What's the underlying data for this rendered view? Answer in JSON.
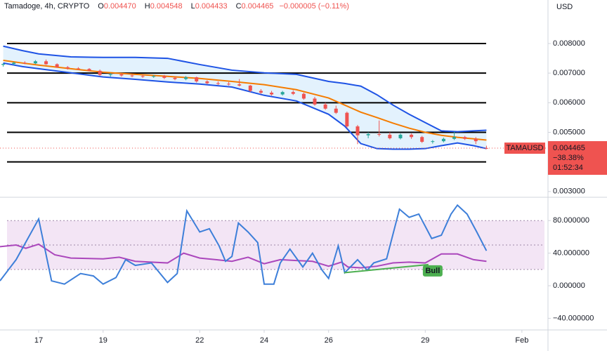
{
  "chart_data": [
    {
      "type": "candlestick",
      "header": {
        "symbol": "Tamadoge, 4h, CRYPTO",
        "ohlc": [
          {
            "label": "O",
            "value": "0.004470"
          },
          {
            "label": "H",
            "value": "0.004548"
          },
          {
            "label": "L",
            "value": "0.004433"
          },
          {
            "label": "C",
            "value": "0.004465"
          }
        ],
        "change": "−0.000005 (−0.11%)"
      },
      "currency": "USD",
      "x": [
        15.9,
        16.23,
        16.57,
        16.9,
        17.23,
        17.57,
        17.9,
        18.23,
        18.57,
        18.9,
        19.23,
        19.57,
        19.9,
        20.23,
        20.57,
        20.9,
        21.23,
        21.57,
        21.9,
        22.23,
        22.57,
        22.9,
        23.23,
        23.57,
        23.9,
        24.23,
        24.57,
        24.9,
        25.23,
        25.57,
        25.9,
        26.23,
        26.57,
        26.9,
        27.23,
        27.57,
        27.9,
        28.23,
        28.57,
        28.9,
        29.23,
        29.57,
        29.9,
        30.23,
        30.57,
        30.9
      ],
      "open": [
        0.00728,
        0.00731,
        0.00735,
        0.00733,
        0.0074,
        0.0073,
        0.0072,
        0.00716,
        0.00714,
        0.00708,
        0.00694,
        0.00696,
        0.00692,
        0.0069,
        0.00688,
        0.0069,
        0.00684,
        0.0068,
        0.00686,
        0.00672,
        0.00666,
        0.00664,
        0.00662,
        0.00658,
        0.0064,
        0.00634,
        0.00628,
        0.00636,
        0.0063,
        0.00614,
        0.00594,
        0.0058,
        0.00566,
        0.0052,
        0.0049,
        0.00494,
        0.00492,
        0.0048,
        0.00492,
        0.00484,
        0.00468,
        0.0047,
        0.00478,
        0.00484,
        0.00478,
        0.00447
      ],
      "high": [
        0.00733,
        0.00738,
        0.0074,
        0.00744,
        0.00746,
        0.00733,
        0.00724,
        0.0072,
        0.00717,
        0.00712,
        0.007,
        0.007,
        0.00697,
        0.00695,
        0.00694,
        0.00694,
        0.00688,
        0.0069,
        0.00688,
        0.00676,
        0.00672,
        0.0067,
        0.0068,
        0.0066,
        0.00646,
        0.0064,
        0.0064,
        0.00642,
        0.00634,
        0.0062,
        0.006,
        0.0059,
        0.0057,
        0.00525,
        0.005,
        0.0054,
        0.005,
        0.00496,
        0.00496,
        0.00488,
        0.00474,
        0.00482,
        0.00502,
        0.00488,
        0.00484,
        0.004548
      ],
      "low": [
        0.00722,
        0.00727,
        0.0073,
        0.0073,
        0.00728,
        0.00718,
        0.00712,
        0.0071,
        0.00706,
        0.0069,
        0.00688,
        0.00688,
        0.00686,
        0.00684,
        0.00684,
        0.0068,
        0.00676,
        0.00676,
        0.00668,
        0.00662,
        0.0066,
        0.00658,
        0.00655,
        0.00636,
        0.0063,
        0.00624,
        0.00624,
        0.00626,
        0.0061,
        0.0059,
        0.00576,
        0.00562,
        0.00515,
        0.0046,
        0.0048,
        0.00486,
        0.00476,
        0.00476,
        0.00478,
        0.00464,
        0.00462,
        0.00466,
        0.00474,
        0.00474,
        0.0046,
        0.004433
      ],
      "close": [
        0.00731,
        0.00735,
        0.00733,
        0.0074,
        0.0073,
        0.0072,
        0.00716,
        0.00714,
        0.00708,
        0.00694,
        0.00696,
        0.00692,
        0.0069,
        0.00688,
        0.0069,
        0.00684,
        0.0068,
        0.00686,
        0.00672,
        0.00666,
        0.00664,
        0.00662,
        0.00658,
        0.0064,
        0.00634,
        0.00628,
        0.00636,
        0.0063,
        0.00614,
        0.00594,
        0.0058,
        0.00566,
        0.0052,
        0.0049,
        0.00494,
        0.00492,
        0.0048,
        0.00492,
        0.00484,
        0.00468,
        0.0047,
        0.00478,
        0.00484,
        0.00478,
        0.0047,
        0.004465
      ],
      "up_color": "#26a69a",
      "down_color": "#ef5350",
      "overlay_x": [
        15.9,
        16.5,
        17,
        18,
        19,
        20,
        21,
        22,
        23,
        24,
        25,
        26,
        26.5,
        27,
        27.5,
        28,
        28.5,
        29,
        29.5,
        30,
        30.5,
        30.9
      ],
      "overlays": [
        {
          "color": "#1e53e5",
          "values": [
            0.00791,
            0.00776,
            0.00765,
            0.00755,
            0.00753,
            0.00753,
            0.0075,
            0.00729,
            0.0071,
            0.00701,
            0.00696,
            0.00672,
            0.00665,
            0.00656,
            0.00627,
            0.00592,
            0.00561,
            0.00533,
            0.00505,
            0.00502,
            0.00505,
            0.00507
          ]
        },
        {
          "color": "#f57c00",
          "values": [
            0.00743,
            0.00734,
            0.00727,
            0.00715,
            0.00703,
            0.00696,
            0.00689,
            0.00682,
            0.00672,
            0.00661,
            0.00644,
            0.00616,
            0.00592,
            0.00568,
            0.0055,
            0.00531,
            0.00514,
            0.005,
            0.0049,
            0.00483,
            0.00478,
            0.00474
          ]
        },
        {
          "color": "#1e53e5",
          "values": [
            0.00734,
            0.00722,
            0.00715,
            0.00701,
            0.00687,
            0.00679,
            0.0067,
            0.00663,
            0.00653,
            0.00625,
            0.00606,
            0.00561,
            0.00521,
            0.00462,
            0.00445,
            0.00443,
            0.00443,
            0.00445,
            0.00455,
            0.00464,
            0.00455,
            0.00445
          ]
        }
      ],
      "band_fill": "#e3f2fd",
      "levels": [
        0.008,
        0.007,
        0.006,
        0.005,
        0.004
      ],
      "last_price": {
        "value": 0.004465,
        "label": "0.004465"
      },
      "last_symbol": "TAMAUSD",
      "last_change": "−38.38%",
      "countdown": "01:52:34",
      "xlim": [
        15.8,
        32.81
      ],
      "ylim": [
        0.00283,
        0.00947
      ],
      "yticks": [
        {
          "value": 0.008,
          "label": "0.008000"
        },
        {
          "value": 0.007,
          "label": "0.007000"
        },
        {
          "value": 0.006,
          "label": "0.006000"
        },
        {
          "value": 0.005,
          "label": "0.005000"
        },
        {
          "value": 0.003,
          "label": "0.003000"
        }
      ],
      "xticks": [
        17,
        19,
        22,
        24,
        26,
        29,
        {
          "value": 32,
          "label": "Feb"
        }
      ]
    },
    {
      "type": "line",
      "xlim": [
        15.8,
        32.81
      ],
      "ylim": [
        -54.3,
        107.8
      ],
      "yticks": [
        {
          "value": 80,
          "label": "80.000000"
        },
        {
          "value": 40,
          "label": "40.000000"
        },
        {
          "value": 0,
          "label": "0.000000"
        },
        {
          "value": -40,
          "label": "−40.000000"
        }
      ],
      "zone": [
        20,
        80
      ],
      "zone_color": "#f3e5f5",
      "midline": 50,
      "series": [
        {
          "color": "#ab47bc",
          "x": [
            15.8,
            16.3,
            16.6,
            17,
            17.5,
            18,
            19,
            19.5,
            20,
            21,
            21.5,
            22,
            22.5,
            23,
            23.5,
            24,
            24.5,
            25,
            25.5,
            26,
            26.4,
            26.6,
            27,
            27.5,
            28,
            28.5,
            29,
            29.5,
            30,
            30.5,
            30.9
          ],
          "values": [
            48,
            50,
            46,
            51,
            38,
            34,
            33,
            35,
            30,
            28,
            40,
            34,
            32,
            30,
            35,
            27,
            32,
            31,
            30,
            24,
            29,
            23,
            22,
            24,
            28,
            29,
            28,
            39,
            39,
            32,
            30
          ]
        },
        {
          "color": "#3d7fd9",
          "x": [
            15.8,
            16.3,
            17,
            17.4,
            17.8,
            18.3,
            18.7,
            19,
            19.4,
            19.7,
            20,
            20.5,
            21,
            21.3,
            21.6,
            22,
            22.3,
            22.6,
            22.8,
            23,
            23.2,
            23.5,
            23.8,
            24,
            24.3,
            24.5,
            24.8,
            25.2,
            25.5,
            25.8,
            26,
            26.3,
            26.5,
            26.9,
            27.2,
            27.4,
            27.8,
            28.2,
            28.5,
            28.8,
            29.2,
            29.5,
            29.8,
            30,
            30.3,
            30.6,
            30.9
          ],
          "values": [
            6,
            32,
            82,
            6,
            2,
            15,
            12,
            2,
            10,
            32,
            25,
            28,
            4,
            15,
            92,
            66,
            70,
            49,
            30,
            36,
            77,
            66,
            53,
            2,
            2,
            28,
            45,
            23,
            40,
            19,
            9,
            49,
            16,
            32,
            19,
            28,
            33,
            94,
            84,
            88,
            58,
            62,
            88,
            99,
            88,
            66,
            43
          ]
        }
      ],
      "annotation": {
        "label": "Bull",
        "color": "#4caf50",
        "x": [
          26.48,
          29.1
        ],
        "y": [
          16,
          26
        ]
      }
    }
  ]
}
